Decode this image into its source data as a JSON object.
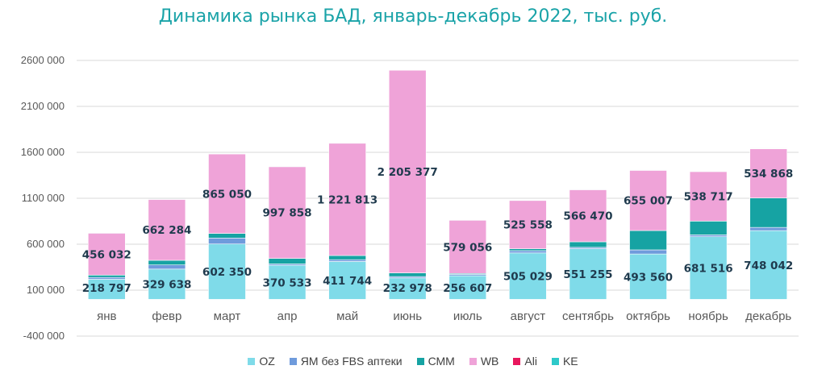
{
  "chart_data": {
    "type": "bar",
    "stacked": true,
    "title": "Динамика рынка БАД, январь-декабрь 2022, тыс. руб.",
    "categories": [
      "янв",
      "февр",
      "март",
      "апр",
      "май",
      "июнь",
      "июль",
      "август",
      "сентябрь",
      "октябрь",
      "ноябрь",
      "декабрь"
    ],
    "ylim": [
      -400000,
      2600000
    ],
    "yticks": [
      -400000,
      100000,
      600000,
      1100000,
      1600000,
      2100000,
      2600000
    ],
    "ytick_labels": [
      "-400 000",
      "100 000",
      "600 000",
      "1100 000",
      "1600 000",
      "2100 000",
      "2600 000"
    ],
    "series": [
      {
        "name": "OZ",
        "color": "#7fdbe9",
        "values": [
          218797,
          329638,
          602350,
          370533,
          411744,
          232978,
          256607,
          505029,
          551255,
          493560,
          681516,
          748042
        ],
        "labels": [
          "218 797",
          "329 638",
          "602 350",
          "370 533",
          "411 744",
          "232 978",
          "256 607",
          "505 029",
          "551 255",
          "493 560",
          "681 516",
          "748 042"
        ]
      },
      {
        "name": "ЯМ без FBS аптеки",
        "color": "#6f9bdc",
        "values": [
          20000,
          45000,
          65000,
          15000,
          20000,
          15000,
          15000,
          25000,
          15000,
          45000,
          20000,
          35000
        ],
        "labels": []
      },
      {
        "name": "СММ",
        "color": "#16a3a3",
        "values": [
          25000,
          50000,
          50000,
          60000,
          45000,
          40000,
          10000,
          20000,
          60000,
          210000,
          150000,
          320000
        ],
        "labels": []
      },
      {
        "name": "WB",
        "color": "#efa3d8",
        "values": [
          456032,
          662284,
          865050,
          997858,
          1221813,
          2205377,
          579056,
          525558,
          566470,
          655007,
          538717,
          534868
        ],
        "labels": [
          "456 032",
          "662 284",
          "865 050",
          "997 858",
          "1 221 813",
          "2 205 377",
          "579 056",
          "525 558",
          "566 470",
          "655 007",
          "538 717",
          "534 868"
        ]
      },
      {
        "name": "Ali",
        "color": "#e8175d",
        "values": [
          2000,
          2000,
          2000,
          2000,
          2000,
          2000,
          2000,
          2000,
          2000,
          2000,
          2000,
          2000
        ],
        "labels": []
      },
      {
        "name": "KE",
        "color": "#2ec9c9",
        "values": [
          3000,
          3000,
          3000,
          3000,
          3000,
          3000,
          3000,
          3000,
          3000,
          3000,
          3000,
          5000
        ],
        "labels": []
      }
    ],
    "legend_position": "bottom",
    "grid": true
  }
}
